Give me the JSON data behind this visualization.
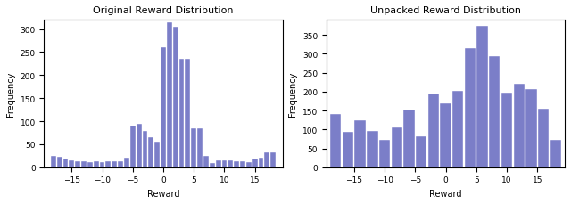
{
  "title1": "Original Reward Distribution",
  "title2": "Unpacked Reward Distribution",
  "xlabel": "Reward",
  "ylabel": "Frequency",
  "bar_color": "#7b7ec8",
  "hist1_centers": [
    -18,
    -17,
    -16,
    -15,
    -14,
    -13,
    -12,
    -11,
    -10,
    -9,
    -8,
    -7,
    -6,
    -5,
    -4,
    -3,
    -2,
    -1,
    0,
    1,
    2,
    3,
    4,
    5,
    6,
    7,
    8,
    9,
    10,
    11,
    12,
    13,
    14,
    15,
    16,
    17,
    18
  ],
  "hist1_values": [
    25,
    22,
    18,
    15,
    14,
    13,
    12,
    13,
    12,
    14,
    13,
    13,
    20,
    90,
    95,
    78,
    65,
    55,
    260,
    315,
    305,
    235,
    235,
    85,
    85,
    25,
    10,
    15,
    15,
    15,
    14,
    14,
    12,
    18,
    20,
    32,
    33
  ],
  "hist1_bar_width": 0.85,
  "hist2_centers": [
    -18,
    -16,
    -14,
    -12,
    -10,
    -8,
    -6,
    -4,
    -2,
    0,
    2,
    4,
    6,
    8,
    10,
    12,
    14,
    16,
    18
  ],
  "hist2_values": [
    140,
    93,
    125,
    95,
    73,
    105,
    152,
    83,
    195,
    168,
    203,
    315,
    375,
    293,
    197,
    222,
    207,
    155,
    73
  ],
  "hist2_bar_width": 1.8,
  "xlim": [
    -19.5,
    19.5
  ],
  "ylim1": [
    0,
    320
  ],
  "ylim2": [
    0,
    390
  ],
  "xticks": [
    -15,
    -10,
    -5,
    0,
    5,
    10,
    15
  ]
}
